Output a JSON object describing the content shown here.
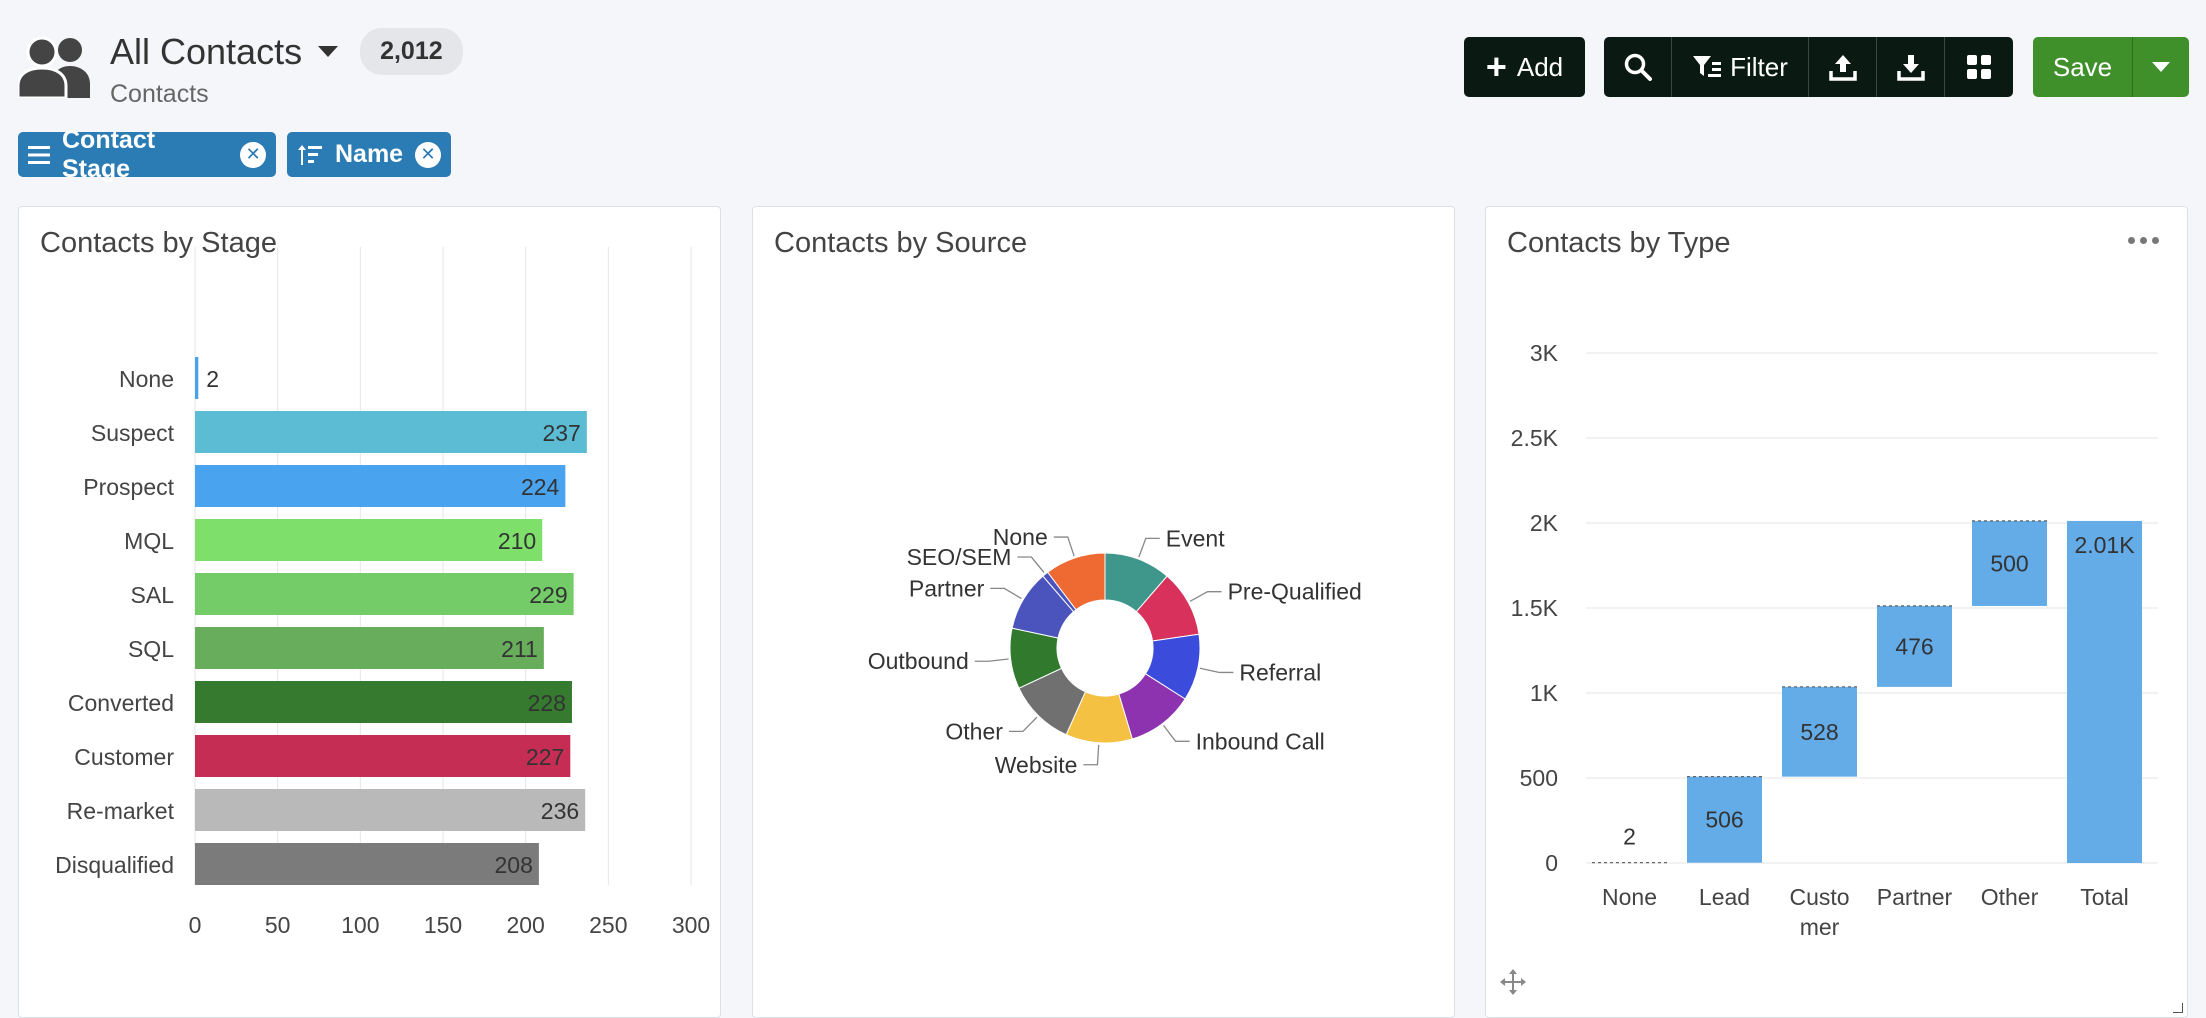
{
  "header": {
    "title": "All Contacts",
    "count": "2,012",
    "subtitle": "Contacts"
  },
  "toolbar": {
    "add_label": "Add",
    "filter_label": "Filter",
    "save_label": "Save"
  },
  "filters": [
    {
      "label": "Contact Stage"
    },
    {
      "label": "Name"
    }
  ],
  "icons": {
    "header": "contacts-icon",
    "add": "plus-icon",
    "search": "search-icon",
    "filter": "filter-icon",
    "upload": "upload-icon",
    "download": "download-icon",
    "layout": "layout-icon",
    "save_menu": "chevron-down-icon"
  },
  "panels": {
    "stage": {
      "title": "Contacts by Stage"
    },
    "source": {
      "title": "Contacts by Source"
    },
    "type": {
      "title": "Contacts by Type"
    }
  },
  "chart_data": [
    {
      "type": "bar",
      "orientation": "horizontal",
      "title": "Contacts by Stage",
      "categories": [
        "None",
        "Suspect",
        "Prospect",
        "MQL",
        "SAL",
        "SQL",
        "Converted",
        "Customer",
        "Re-market",
        "Disqualified"
      ],
      "values": [
        2,
        237,
        224,
        210,
        229,
        211,
        228,
        227,
        236,
        208
      ],
      "colors": [
        "#4aa3e8",
        "#5bbcd4",
        "#4aa3ee",
        "#7ee06a",
        "#74cc69",
        "#67ad5b",
        "#357a2f",
        "#c62d55",
        "#b9b9b9",
        "#7b7b7b"
      ],
      "xticks": [
        "0",
        "50",
        "100",
        "150",
        "200",
        "250",
        "300"
      ],
      "xlim": [
        0,
        300
      ],
      "grid": true
    },
    {
      "type": "pie",
      "variant": "donut",
      "title": "Contacts by Source",
      "labels": [
        "Event",
        "Pre-Qualified",
        "Referral",
        "Inbound Call",
        "Website",
        "Other",
        "Outbound",
        "Partner",
        "SEO/SEM",
        "None"
      ],
      "values": [
        11,
        11,
        11,
        11,
        11,
        11,
        10,
        10,
        1,
        10
      ],
      "colors": [
        "#3f968a",
        "#d8325c",
        "#3b4bdc",
        "#8e33b0",
        "#f4c143",
        "#707070",
        "#317a2d",
        "#4b53bd",
        "#4b53bd",
        "#ef6a33"
      ]
    },
    {
      "type": "bar",
      "variant": "waterfall",
      "title": "Contacts by Type",
      "categories": [
        "None",
        "Lead",
        "Custo mer",
        "Partner",
        "Other",
        "Total"
      ],
      "values": [
        2,
        506,
        528,
        476,
        500,
        2012
      ],
      "data_labels": [
        "2",
        "506",
        "528",
        "476",
        "500",
        "2.01K"
      ],
      "yticks": [
        "0",
        "500",
        "1K",
        "1.5K",
        "2K",
        "2.5K",
        "3K"
      ],
      "ylim": [
        0,
        3000
      ],
      "color": "#64ace8",
      "grid": true
    }
  ]
}
